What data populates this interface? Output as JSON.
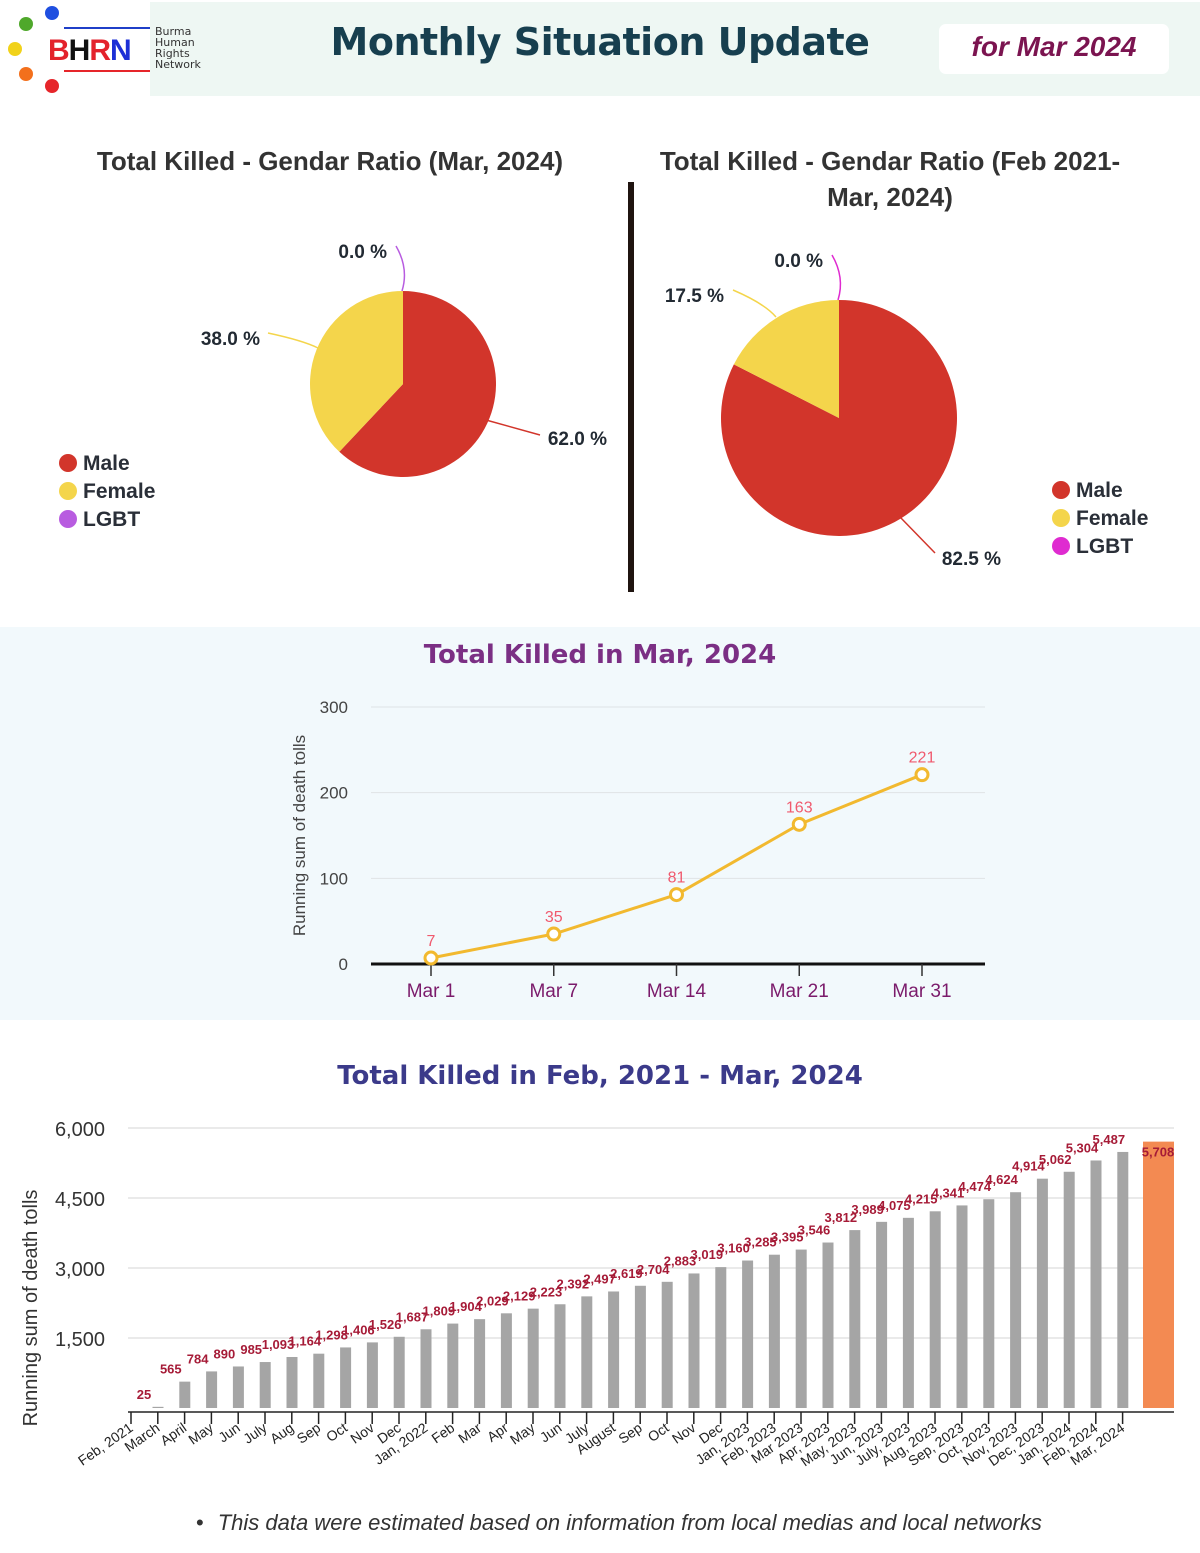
{
  "header": {
    "logo_text": [
      "B",
      "H",
      "R",
      "N"
    ],
    "org_name": [
      "Burma",
      "Human",
      "Rights",
      "Network"
    ],
    "title": "Monthly Situation Update",
    "date_badge": "for Mar 2024"
  },
  "colors": {
    "male": "#d2352b",
    "female": "#f4d54b",
    "lgbt_left": "#b85ce0",
    "lgbt_right": "#df2bd0",
    "line": "#f2b92f",
    "line_label": "#f05a6e",
    "bar": "#a5a5a5",
    "bar_highlight": "#f38a52",
    "bar_label": "#a61b37",
    "month_tick": "#7b1b6b"
  },
  "footnote": "This data were estimated based on information from local medias and local networks",
  "chart_data": [
    {
      "type": "pie",
      "title": "Total Killed - Gendar Ratio (Mar, 2024)",
      "slices": [
        {
          "label": "Male",
          "value": 62.0,
          "text": "62.0 %"
        },
        {
          "label": "Female",
          "value": 38.0,
          "text": "38.0 %"
        },
        {
          "label": "LGBT",
          "value": 0.0,
          "text": "0.0 %"
        }
      ],
      "legend": [
        "Male",
        "Female",
        "LGBT"
      ],
      "legend_position": "bottom-left"
    },
    {
      "type": "pie",
      "title_lines": [
        "Total Killed - Gendar Ratio (Feb 2021-",
        "Mar, 2024)"
      ],
      "slices": [
        {
          "label": "Male",
          "value": 82.5,
          "text": "82.5 %"
        },
        {
          "label": "Female",
          "value": 17.5,
          "text": "17.5 %"
        },
        {
          "label": "LGBT",
          "value": 0.0,
          "text": "0.0 %"
        }
      ],
      "legend": [
        "Male",
        "Female",
        "LGBT"
      ],
      "legend_position": "bottom-right"
    },
    {
      "type": "line",
      "title": "Total Killed in Mar, 2024",
      "categories": [
        "Mar 1",
        "Mar 7",
        "Mar 14",
        "Mar 21",
        "Mar 31"
      ],
      "values": [
        7,
        35,
        81,
        163,
        221
      ],
      "ylabel": "Running sum of death tolls",
      "ylim": [
        0,
        300
      ],
      "yticks": [
        0,
        100,
        200,
        300
      ],
      "grid": true
    },
    {
      "type": "bar",
      "title": "Total Killed in Feb, 2021 - Mar, 2024",
      "categories": [
        "Feb, 2021",
        "March",
        "April",
        "May",
        "Jun",
        "July",
        "Aug",
        "Sep",
        "Oct",
        "Nov",
        "Dec",
        "Jan, 2022",
        "Feb",
        "Mar",
        "Apr",
        "May",
        "Jun",
        "July",
        "August",
        "Sep",
        "Oct",
        "Nov",
        "Dec",
        "Jan, 2023",
        "Feb, 2023",
        "Mar 2023",
        "Apr, 2023",
        "May, 2023",
        "Jun, 2023",
        "July, 2023",
        "Aug, 2023",
        "Sep, 2023",
        "Oct, 2023",
        "Nov, 2023",
        "Dec, 2023",
        "Jan, 2024",
        "Feb, 2024",
        "Mar, 2024"
      ],
      "values": [
        25,
        565,
        784,
        890,
        985,
        1093,
        1164,
        1298,
        1406,
        1526,
        1687,
        1809,
        1904,
        2029,
        2129,
        2223,
        2392,
        2497,
        2619,
        2704,
        2883,
        3019,
        3160,
        3285,
        3395,
        3546,
        3812,
        3989,
        4075,
        4215,
        4341,
        4474,
        4624,
        4914,
        5062,
        5304,
        5487,
        5708
      ],
      "labels": [
        "25",
        "565",
        "784",
        "890",
        "985",
        "1,093",
        "1,164",
        "1,298",
        "1,406",
        "1,526",
        "1,687",
        "1,809",
        "1,904",
        "2,029",
        "2,129",
        "2,223",
        "2,392",
        "2,497",
        "2,619",
        "2,704",
        "2,883",
        "3,019",
        "3,160",
        "3,285",
        "3,395",
        "3,546",
        "3,812",
        "3,989",
        "4,075",
        "4,215",
        "4,341",
        "4,474",
        "4,624",
        "4,914",
        "5,062",
        "5,304",
        "5,487",
        "5,708"
      ],
      "highlight": "Mar, 2024",
      "ylabel": "Running sum of death tolls",
      "ylim": [
        0,
        6000
      ],
      "yticks": [
        1500,
        3000,
        4500,
        6000
      ],
      "ytick_labels": [
        "1,500",
        "3,000",
        "4,500",
        "6,000"
      ],
      "grid": true
    }
  ]
}
